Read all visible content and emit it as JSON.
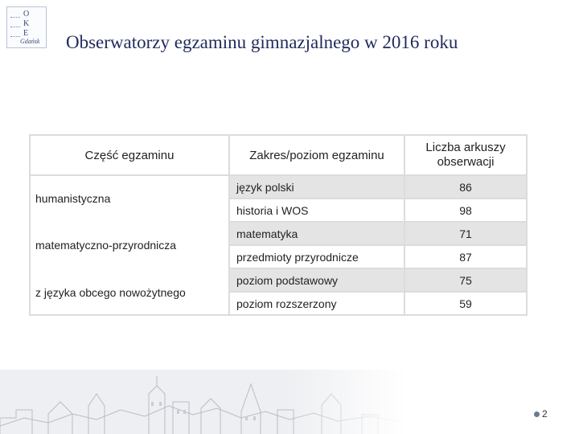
{
  "logo": {
    "letters": [
      "O",
      "K",
      "E"
    ],
    "signature": "Gdańsk"
  },
  "title": "Obserwatorzy egzaminu gimnazjalnego w 2016 roku",
  "table": {
    "headers": {
      "part": "Część egzaminu",
      "scope": "Zakres/poziom egzaminu",
      "count": "Liczba arkuszy obserwacji"
    },
    "parts": [
      "humanistyczna",
      "matematyczno-przyrodnicza",
      "z języka obcego nowożytnego"
    ],
    "rows": [
      {
        "scope": "język polski",
        "count": "86"
      },
      {
        "scope": "historia i WOS",
        "count": "98"
      },
      {
        "scope": "matematyka",
        "count": "71"
      },
      {
        "scope": "przedmioty przyrodnicze",
        "count": "87"
      },
      {
        "scope": "poziom podstawowy",
        "count": "75"
      },
      {
        "scope": "poziom rozszerzony",
        "count": "59"
      }
    ]
  },
  "page_number": "2"
}
